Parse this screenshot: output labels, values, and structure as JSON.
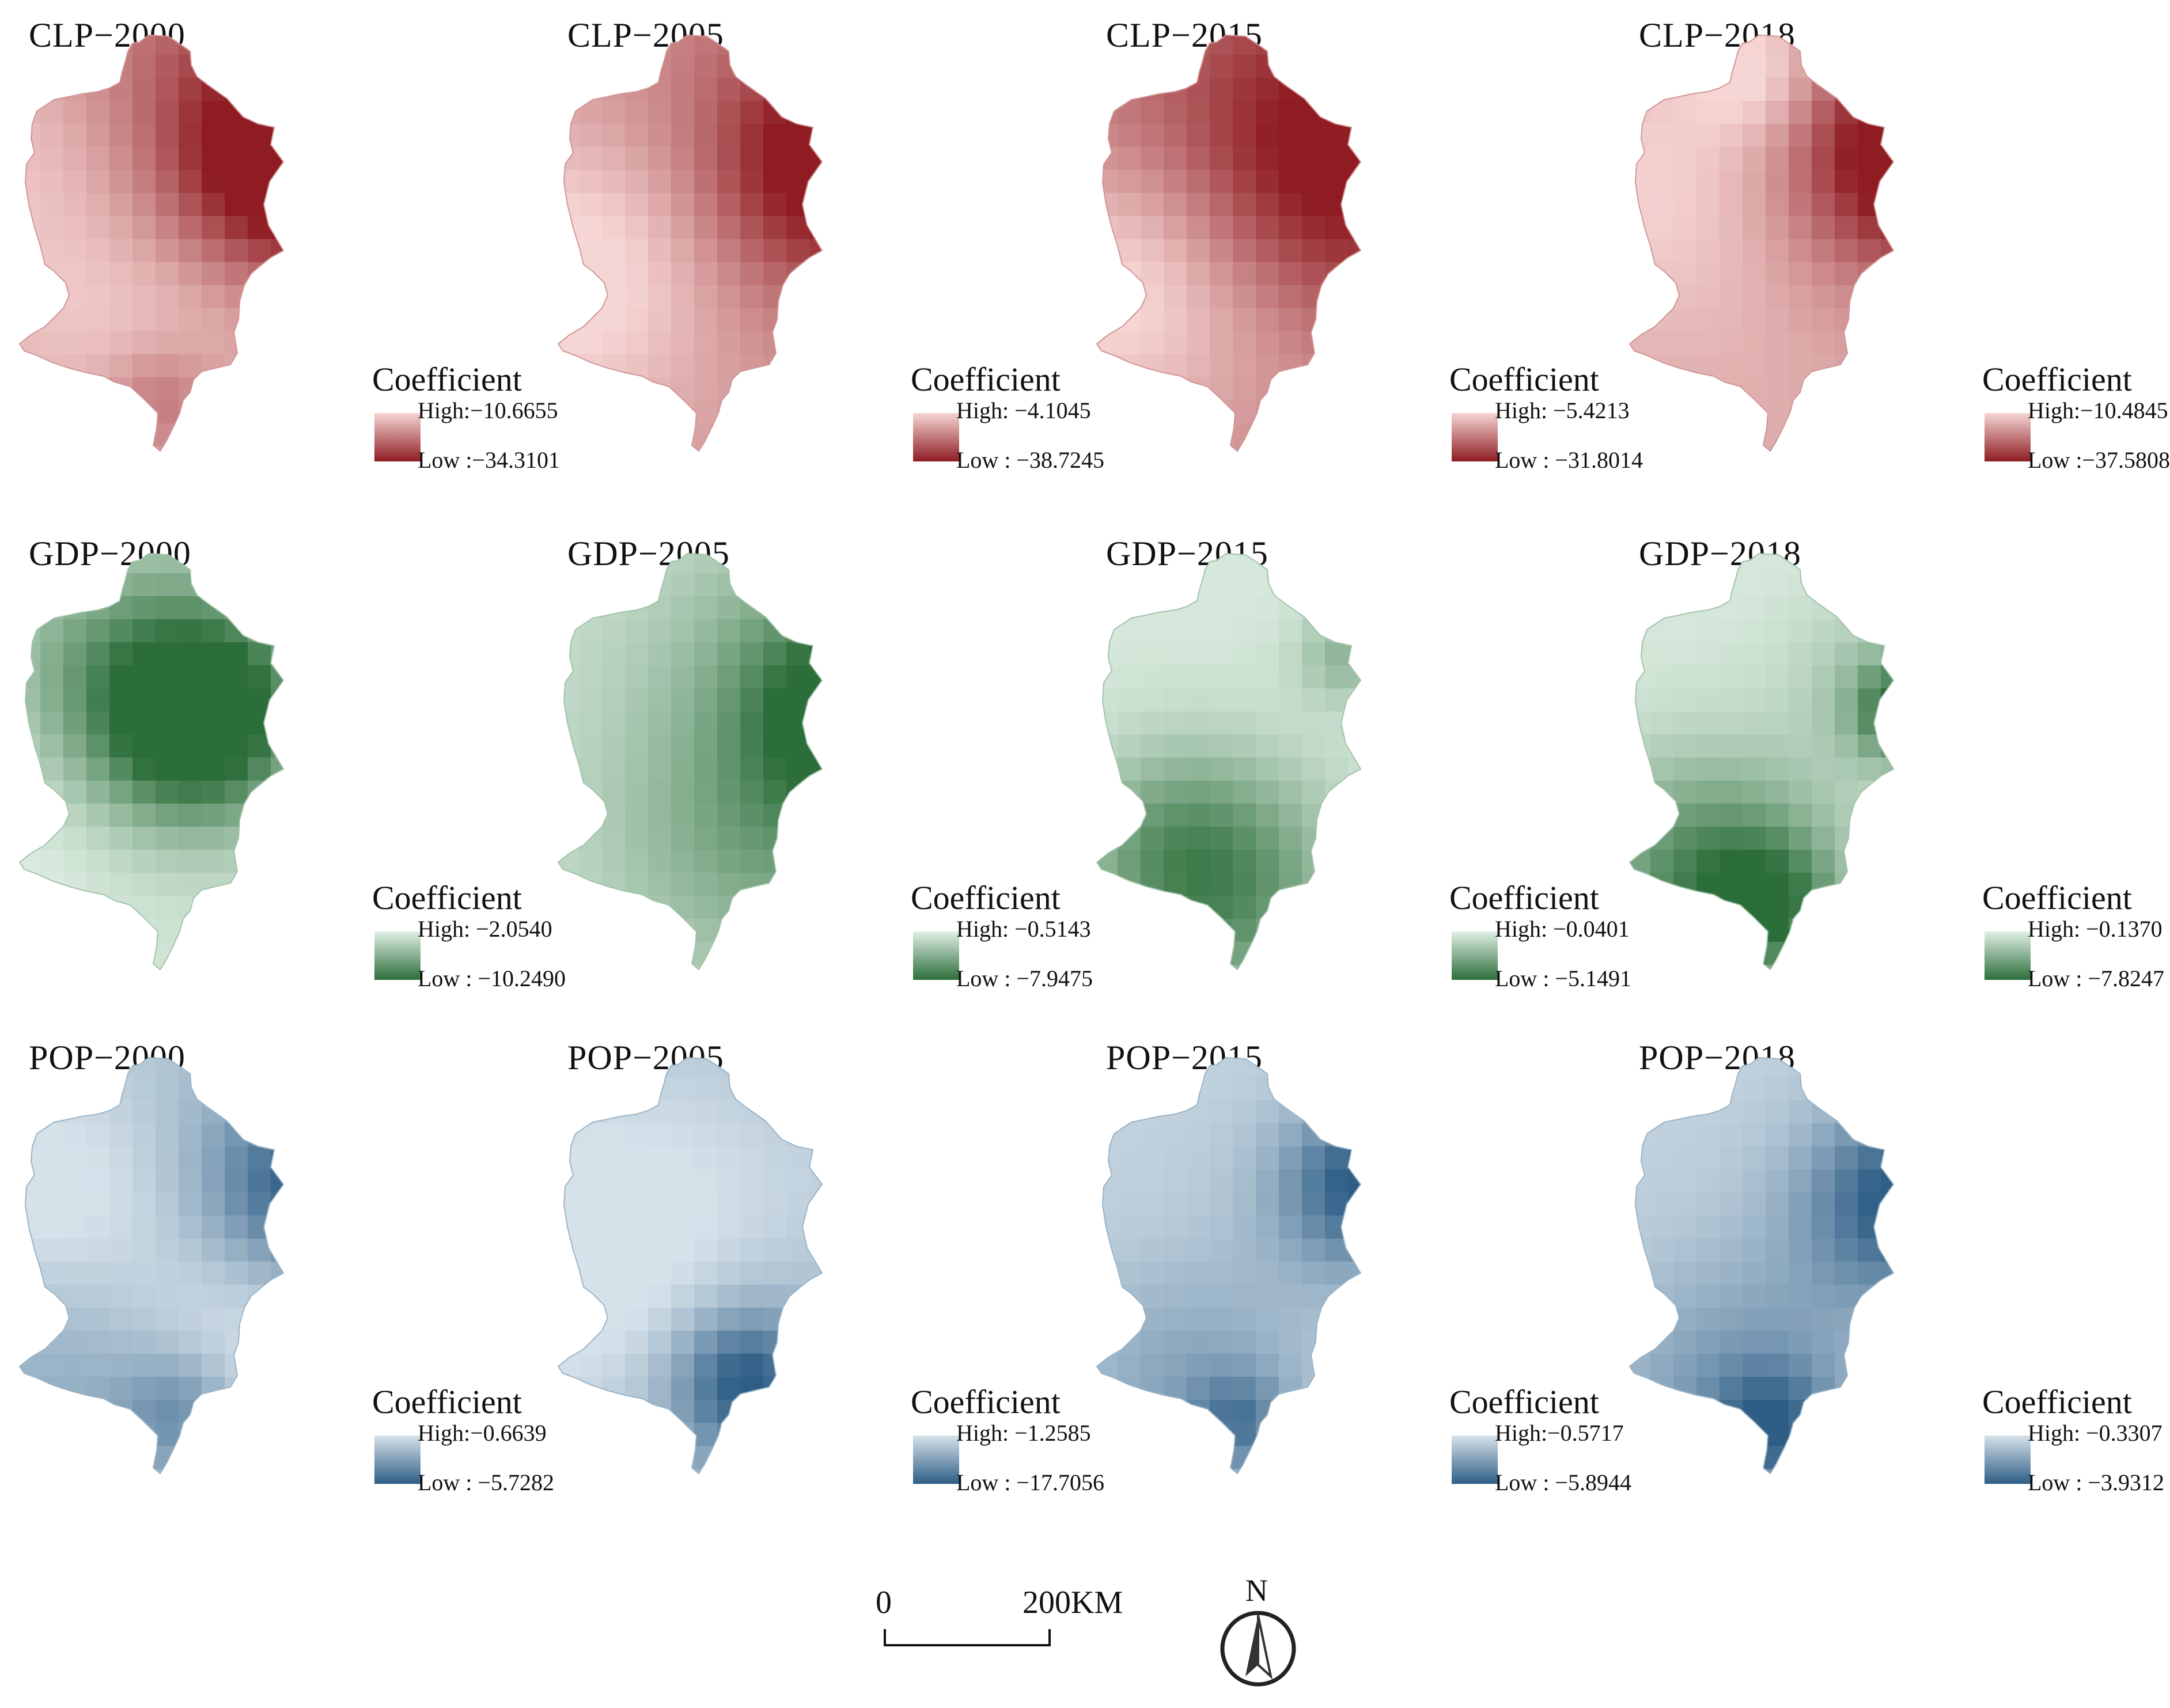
{
  "legend_title": "Coefficient",
  "panels": [
    {
      "title": "CLP−2000",
      "high": "High:−10.6655",
      "low": "Low :−34.3101",
      "ramp": "red",
      "pattern": "clp2000"
    },
    {
      "title": "CLP−2005",
      "high": "High: −4.1045",
      "low": "Low : −38.7245",
      "ramp": "red",
      "pattern": "clp2005"
    },
    {
      "title": "CLP−2015",
      "high": "High: −5.4213",
      "low": "Low : −31.8014",
      "ramp": "red",
      "pattern": "clp2015"
    },
    {
      "title": "CLP−2018",
      "high": "High:−10.4845",
      "low": "Low :−37.5808",
      "ramp": "red",
      "pattern": "clp2018"
    },
    {
      "title": "GDP−2000",
      "high": "High: −2.0540",
      "low": "Low : −10.2490",
      "ramp": "green",
      "pattern": "gdp2000"
    },
    {
      "title": "GDP−2005",
      "high": "High: −0.5143",
      "low": "Low : −7.9475",
      "ramp": "green",
      "pattern": "gdp2005"
    },
    {
      "title": "GDP−2015",
      "high": "High: −0.0401",
      "low": "Low : −5.1491",
      "ramp": "green",
      "pattern": "gdp2015"
    },
    {
      "title": "GDP−2018",
      "high": "High: −0.1370",
      "low": "Low : −7.8247",
      "ramp": "green",
      "pattern": "gdp2018"
    },
    {
      "title": "POP−2000",
      "high": "High:−0.6639",
      "low": "Low : −5.7282",
      "ramp": "blue",
      "pattern": "pop2000"
    },
    {
      "title": "POP−2005",
      "high": "High: −1.2585",
      "low": "Low : −17.7056",
      "ramp": "blue",
      "pattern": "pop2005"
    },
    {
      "title": "POP−2015",
      "high": "High:−0.5717",
      "low": "Low : −5.8944",
      "ramp": "blue",
      "pattern": "pop2015"
    },
    {
      "title": "POP−2018",
      "high": "High: −0.3307",
      "low": "Low : −3.9312",
      "ramp": "blue",
      "pattern": "pop2018"
    }
  ],
  "ramps": {
    "red": {
      "light": "#f6d6d4",
      "dark": "#8e1c22"
    },
    "green": {
      "light": "#e1f0e6",
      "dark": "#2c6e3a"
    },
    "blue": {
      "light": "#d6e2ea",
      "dark": "#2e5e86"
    }
  },
  "scalebar": {
    "zero": "0",
    "distance": "200KM"
  },
  "north_label": "N"
}
